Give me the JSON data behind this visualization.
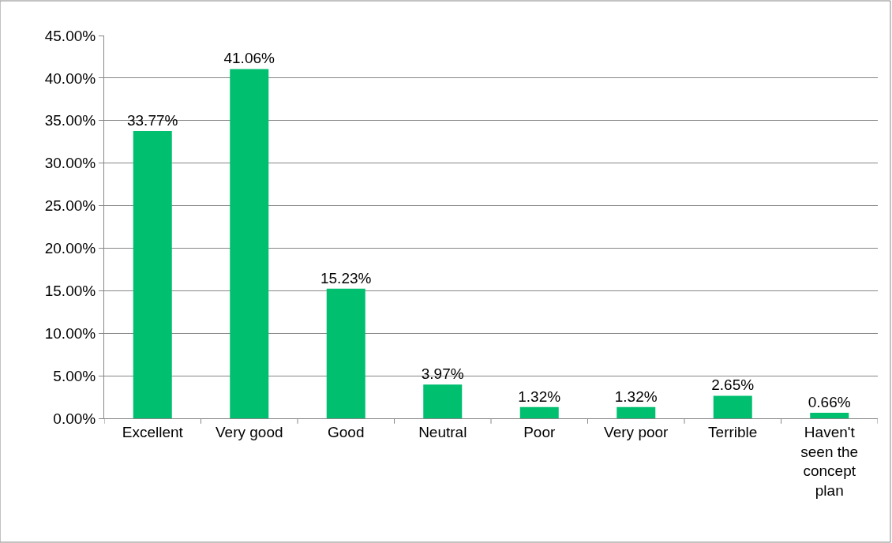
{
  "chart_data": {
    "type": "bar",
    "categories": [
      "Excellent",
      "Very good",
      "Good",
      "Neutral",
      "Poor",
      "Very poor",
      "Terrible",
      "Haven't seen the concept plan"
    ],
    "values": [
      33.77,
      41.06,
      15.23,
      3.97,
      1.32,
      1.32,
      2.65,
      0.66
    ],
    "value_labels": [
      "33.77%",
      "41.06%",
      "15.23%",
      "3.97%",
      "1.32%",
      "1.32%",
      "2.65%",
      "0.66%"
    ],
    "color": "#00bf6f",
    "ylim": [
      0,
      45
    ],
    "yticks": [
      {
        "value": 0,
        "label": "0.00%"
      },
      {
        "value": 5,
        "label": "5.00%"
      },
      {
        "value": 10,
        "label": "10.00%"
      },
      {
        "value": 15,
        "label": "15.00%"
      },
      {
        "value": 20,
        "label": "20.00%"
      },
      {
        "value": 25,
        "label": "25.00%"
      },
      {
        "value": 30,
        "label": "30.00%"
      },
      {
        "value": 35,
        "label": "35.00%"
      },
      {
        "value": 40,
        "label": "40.00%"
      },
      {
        "value": 45,
        "label": "45.00%"
      }
    ],
    "grid": "y"
  }
}
